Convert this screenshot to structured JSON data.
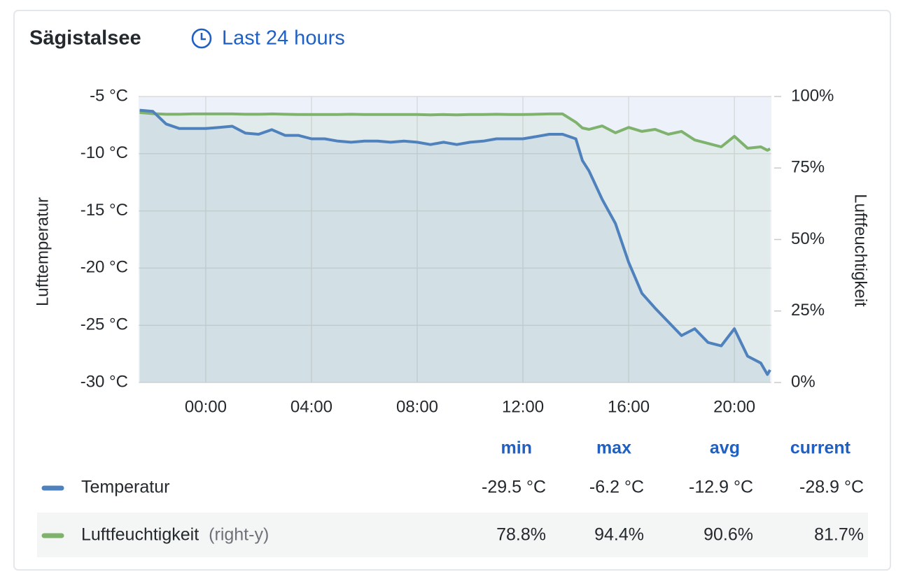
{
  "chart_data": {
    "type": "line",
    "title": "Sägistalsee",
    "time_range": "Last 24 hours",
    "y_label": "Lufttemperatur",
    "y2_label": "Luftfeuchtigkeit",
    "x": [
      -2.5,
      -2,
      -1.5,
      -1,
      -0.5,
      0,
      0.5,
      1,
      1.5,
      2,
      2.5,
      3,
      3.5,
      4,
      4.5,
      5,
      5.5,
      6,
      6.5,
      7,
      7.5,
      8,
      8.5,
      9,
      9.5,
      10,
      10.5,
      11,
      11.5,
      12,
      12.5,
      13,
      13.5,
      14,
      14.25,
      14.5,
      15,
      15.5,
      16,
      16.5,
      17,
      17.5,
      18,
      18.5,
      19,
      19.5,
      20,
      20.5,
      21,
      21.25,
      21.35
    ],
    "xlim": [
      -2.54,
      21.4
    ],
    "xticks": [
      {
        "value": 0,
        "label": "00:00"
      },
      {
        "value": 4,
        "label": "04:00"
      },
      {
        "value": 8,
        "label": "08:00"
      },
      {
        "value": 12,
        "label": "12:00"
      },
      {
        "value": 16,
        "label": "16:00"
      },
      {
        "value": 20,
        "label": "20:00"
      }
    ],
    "ylim": [
      -30,
      -5
    ],
    "yticks": [
      {
        "value": -5,
        "label": "-5 °C"
      },
      {
        "value": -10,
        "label": "-10 °C"
      },
      {
        "value": -15,
        "label": "-15 °C"
      },
      {
        "value": -20,
        "label": "-20 °C"
      },
      {
        "value": -25,
        "label": "-25 °C"
      },
      {
        "value": -30,
        "label": "-30 °C"
      }
    ],
    "y2lim": [
      0,
      100
    ],
    "y2ticks": [
      {
        "value": 0,
        "label": "0%"
      },
      {
        "value": 25,
        "label": "25%"
      },
      {
        "value": 50,
        "label": "50%"
      },
      {
        "value": 75,
        "label": "75%"
      },
      {
        "value": 100,
        "label": "100%"
      }
    ],
    "grid": true,
    "legend_columns": [
      "min",
      "max",
      "avg",
      "current"
    ],
    "series": [
      {
        "name": "Temperatur",
        "color": "#4f81bd",
        "values": [
          -6.2,
          -6.3,
          -7.4,
          -7.8,
          -7.8,
          -7.8,
          -7.7,
          -7.6,
          -8.2,
          -8.3,
          -7.9,
          -8.4,
          -8.4,
          -8.7,
          -8.7,
          -8.9,
          -9.0,
          -8.9,
          -8.9,
          -9.0,
          -8.9,
          -9.0,
          -9.2,
          -9.0,
          -9.2,
          -9.0,
          -8.9,
          -8.7,
          -8.7,
          -8.7,
          -8.5,
          -8.3,
          -8.3,
          -8.7,
          -10.6,
          -11.5,
          -14.0,
          -16.1,
          -19.5,
          -22.2,
          -23.5,
          -24.7,
          -25.9,
          -25.3,
          -26.5,
          -26.8,
          -25.3,
          -27.7,
          -28.3,
          -29.3,
          -28.9
        ],
        "stats": [
          "-29.5 °C",
          "-6.2 °C",
          "-12.9 °C",
          "-28.9 °C"
        ]
      },
      {
        "name": "Luftfeuchtigkeit",
        "note": "(right-y)",
        "color": "#7eb26d",
        "axis": "y2",
        "values": [
          94.4,
          94.0,
          93.8,
          93.8,
          93.9,
          93.9,
          93.9,
          93.9,
          93.8,
          93.8,
          93.9,
          93.8,
          93.7,
          93.7,
          93.7,
          93.7,
          93.8,
          93.7,
          93.7,
          93.7,
          93.7,
          93.7,
          93.6,
          93.7,
          93.6,
          93.7,
          93.7,
          93.8,
          93.7,
          93.7,
          93.8,
          93.9,
          93.9,
          91.0,
          89.0,
          88.5,
          89.7,
          87.3,
          89.2,
          87.8,
          88.5,
          86.8,
          87.8,
          84.8,
          83.6,
          82.4,
          86.1,
          81.9,
          82.4,
          81.2,
          81.7
        ],
        "stats": [
          "78.8%",
          "94.4%",
          "90.6%",
          "81.7%"
        ]
      }
    ]
  }
}
